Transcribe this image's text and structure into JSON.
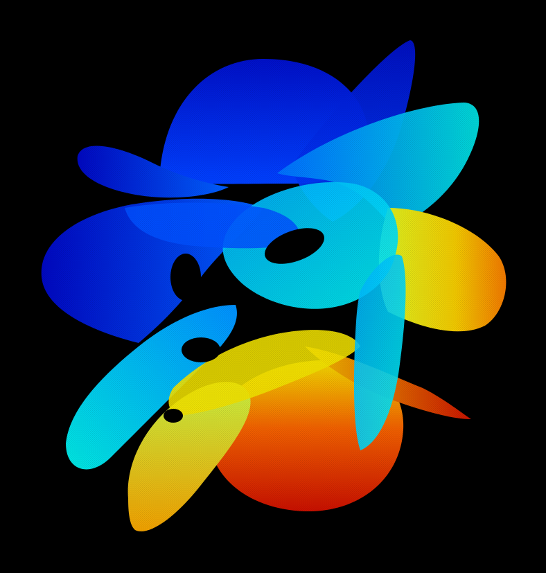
{
  "scene": {
    "subject": "",
    "background_color": "#000000",
    "colormap": [
      "#0000c8",
      "#0050ff",
      "#00b4ff",
      "#00f0e6",
      "#f0f000",
      "#ffb400",
      "#e63200",
      "#c81400"
    ]
  }
}
